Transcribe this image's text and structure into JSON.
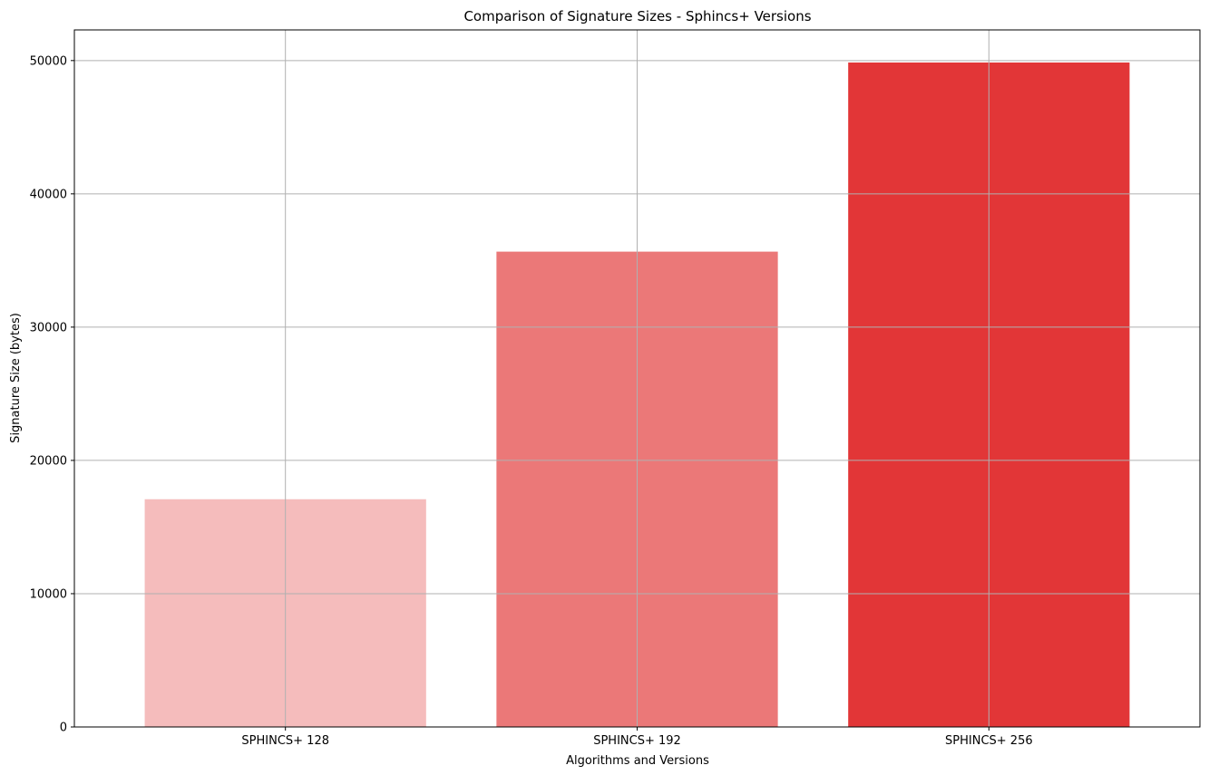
{
  "chart_data": {
    "type": "bar",
    "title": "Comparison of Signature Sizes - Sphincs+ Versions",
    "xlabel": "Algorithms and Versions",
    "ylabel": "Signature Size (bytes)",
    "categories": [
      "SPHINCS+ 128",
      "SPHINCS+ 192",
      "SPHINCS+ 256"
    ],
    "values": [
      17088,
      35664,
      49856
    ],
    "colors": [
      "#f5bcbc",
      "#eb7878",
      "#e23637"
    ],
    "ylim": [
      0,
      52300
    ],
    "yticks": [
      0,
      10000,
      20000,
      30000,
      40000,
      50000
    ],
    "grid": true,
    "grid_color": "#b0b0b0"
  }
}
